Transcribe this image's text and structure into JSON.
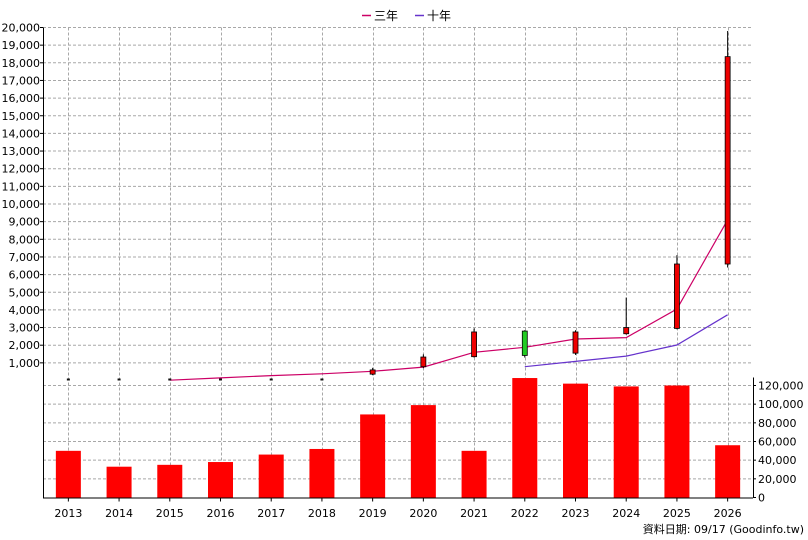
{
  "chart_data": [
    {
      "type": "candlestick",
      "legend_position": "top-center",
      "grid": true,
      "ylim": [
        0,
        20000
      ],
      "y_ticks": [
        "1,000",
        "2,000",
        "3,000",
        "4,000",
        "5,000",
        "6,000",
        "7,000",
        "8,000",
        "9,000",
        "10,000",
        "11,000",
        "12,000",
        "13,000",
        "14,000",
        "15,000",
        "16,000",
        "17,000",
        "18,000",
        "19,000",
        "20,000"
      ],
      "categories": [
        "2013",
        "2014",
        "2015",
        "2016",
        "2017",
        "2018",
        "2019",
        "2020",
        "2021",
        "2022",
        "2023",
        "2024",
        "2025",
        "2026"
      ],
      "candles": [
        {
          "open": 0,
          "close": 0,
          "high": 0,
          "low": 0,
          "color": "#111111"
        },
        {
          "open": 0,
          "close": 0,
          "high": 0,
          "low": 0,
          "color": "#111111"
        },
        {
          "open": 0,
          "close": 0,
          "high": 0,
          "low": 0,
          "color": "#111111"
        },
        {
          "open": 0,
          "close": 0,
          "high": 0,
          "low": 0,
          "color": "#111111"
        },
        {
          "open": 0,
          "close": 0,
          "high": 0,
          "low": 0,
          "color": "#111111"
        },
        {
          "open": 0,
          "close": 0,
          "high": 0,
          "low": 0,
          "color": "#111111"
        },
        {
          "open": 360,
          "close": 600,
          "high": 720,
          "low": 300,
          "color": "#ee0000"
        },
        {
          "open": 780,
          "close": 1330,
          "high": 1480,
          "low": 700,
          "color": "#ee0000"
        },
        {
          "open": 1350,
          "close": 2750,
          "high": 2950,
          "low": 1300,
          "color": "#ee0000"
        },
        {
          "open": 2800,
          "close": 1420,
          "high": 2850,
          "low": 1300,
          "color": "#22cc22"
        },
        {
          "open": 1550,
          "close": 2750,
          "high": 2850,
          "low": 1450,
          "color": "#ee0000"
        },
        {
          "open": 2650,
          "close": 3000,
          "high": 4700,
          "low": 2600,
          "color": "#ee0000"
        },
        {
          "open": 2950,
          "close": 6600,
          "high": 7100,
          "low": 2900,
          "color": "#ee0000"
        },
        {
          "open": 6600,
          "close": 18350,
          "high": 19800,
          "low": 6400,
          "color": "#ee0000"
        }
      ],
      "series": [
        {
          "name": "三年",
          "color": "#cc0066",
          "values": [
            null,
            null,
            15,
            150,
            280,
            380,
            520,
            760,
            1600,
            1880,
            2350,
            2430,
            4050,
            9100
          ]
        },
        {
          "name": "十年",
          "color": "#6633cc",
          "values": [
            null,
            null,
            null,
            null,
            null,
            null,
            null,
            null,
            null,
            780,
            1080,
            1380,
            2010,
            3720
          ]
        }
      ]
    },
    {
      "type": "bar",
      "color": "#ff0000",
      "ylim": [
        0,
        120000
      ],
      "y_ticks": [
        "0",
        "20,000",
        "40,000",
        "60,000",
        "80,000",
        "100,000",
        "120,000"
      ],
      "categories": [
        "2013",
        "2014",
        "2015",
        "2016",
        "2017",
        "2018",
        "2019",
        "2020",
        "2021",
        "2022",
        "2023",
        "2024",
        "2025",
        "2026"
      ],
      "values": [
        50000,
        33000,
        35000,
        38000,
        46000,
        52000,
        89000,
        99000,
        50000,
        128000,
        122000,
        119000,
        120000,
        56000
      ]
    }
  ],
  "footer": "資料日期: 09/17 (Goodinfo.tw)"
}
